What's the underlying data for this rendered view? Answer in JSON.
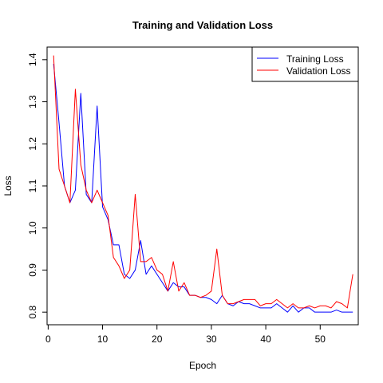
{
  "chart_data": {
    "type": "line",
    "title": "Training and Validation Loss",
    "xlabel": "Epoch",
    "ylabel": "Loss",
    "xlim": [
      -0.2,
      57
    ],
    "ylim": [
      0.77,
      1.43
    ],
    "xticks": [
      0,
      10,
      20,
      30,
      40,
      50
    ],
    "yticks": [
      0.8,
      0.9,
      1.0,
      1.1,
      1.2,
      1.3,
      1.4
    ],
    "ytick_labels": [
      "0.8",
      "0.9",
      "1.0",
      "1.1",
      "1.2",
      "1.3",
      "1.4"
    ],
    "grid": false,
    "legend_position": "top-right",
    "x": [
      1,
      2,
      3,
      4,
      5,
      6,
      7,
      8,
      9,
      10,
      11,
      12,
      13,
      14,
      15,
      16,
      17,
      18,
      19,
      20,
      21,
      22,
      23,
      24,
      25,
      26,
      27,
      28,
      29,
      30,
      31,
      32,
      33,
      34,
      35,
      36,
      37,
      38,
      39,
      40,
      41,
      42,
      43,
      44,
      45,
      46,
      47,
      48,
      49,
      50,
      51,
      52,
      53,
      54,
      55,
      56
    ],
    "series": [
      {
        "name": "Training Loss",
        "color": "#0000ff",
        "values": [
          1.39,
          1.25,
          1.1,
          1.06,
          1.09,
          1.32,
          1.08,
          1.06,
          1.29,
          1.05,
          1.02,
          0.96,
          0.96,
          0.89,
          0.88,
          0.9,
          0.97,
          0.89,
          0.91,
          0.89,
          0.87,
          0.85,
          0.87,
          0.86,
          0.86,
          0.84,
          0.84,
          0.835,
          0.835,
          0.83,
          0.82,
          0.84,
          0.82,
          0.815,
          0.825,
          0.82,
          0.82,
          0.815,
          0.81,
          0.81,
          0.81,
          0.82,
          0.81,
          0.8,
          0.815,
          0.8,
          0.81,
          0.81,
          0.8,
          0.8,
          0.8,
          0.8,
          0.805,
          0.8,
          0.8,
          0.8
        ]
      },
      {
        "name": "Validation Loss",
        "color": "#ff0000",
        "values": [
          1.41,
          1.14,
          1.1,
          1.06,
          1.33,
          1.15,
          1.09,
          1.06,
          1.09,
          1.06,
          1.03,
          0.93,
          0.91,
          0.88,
          0.9,
          1.08,
          0.92,
          0.92,
          0.93,
          0.9,
          0.89,
          0.85,
          0.92,
          0.85,
          0.87,
          0.84,
          0.84,
          0.835,
          0.84,
          0.85,
          0.95,
          0.84,
          0.82,
          0.82,
          0.825,
          0.83,
          0.83,
          0.83,
          0.815,
          0.82,
          0.82,
          0.83,
          0.82,
          0.81,
          0.82,
          0.81,
          0.81,
          0.815,
          0.81,
          0.815,
          0.815,
          0.81,
          0.825,
          0.82,
          0.81,
          0.89
        ]
      }
    ]
  }
}
